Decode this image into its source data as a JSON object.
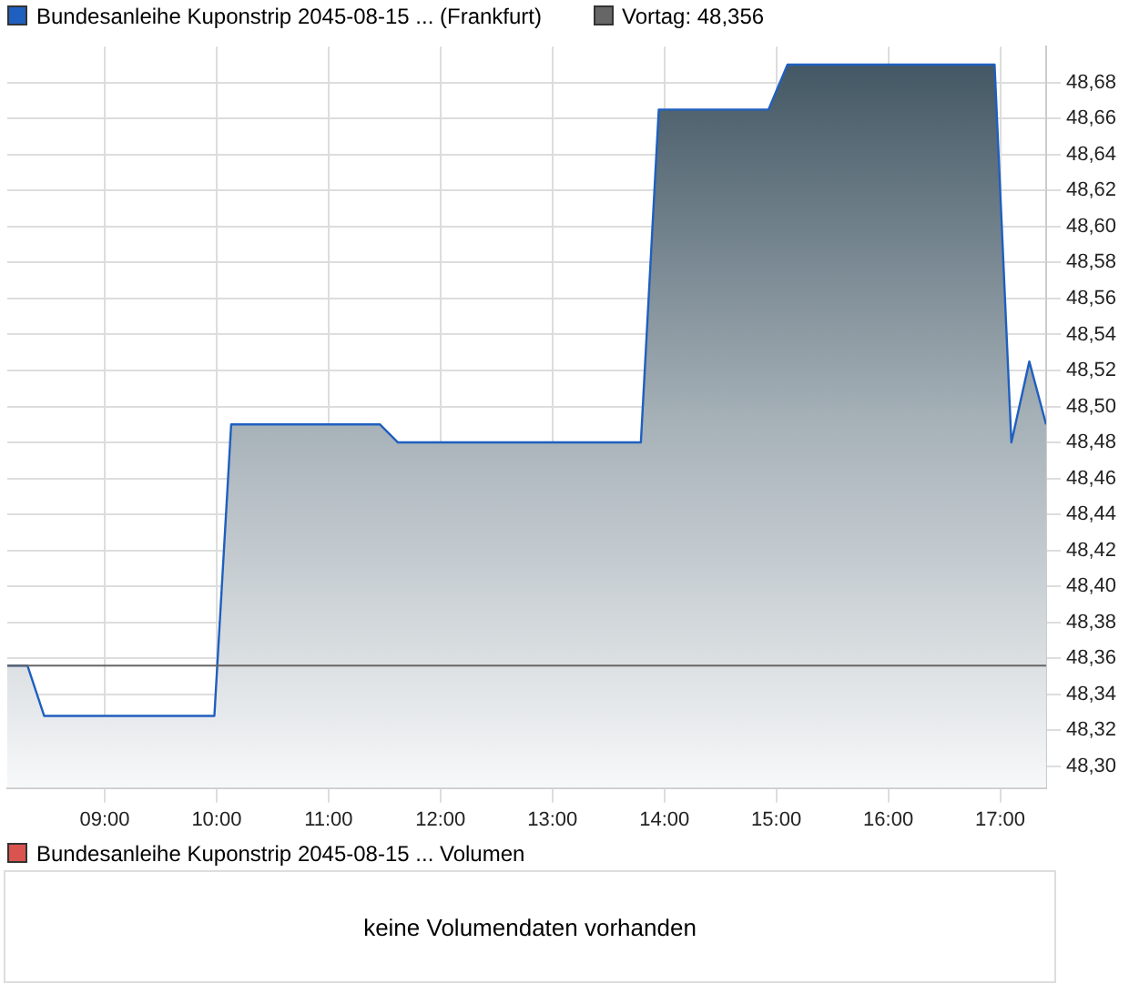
{
  "chart_data": [
    {
      "type": "area",
      "legend": "top",
      "grid": true,
      "marker": "none",
      "xlim": [
        8.13,
        17.41
      ],
      "xticks": [
        {
          "value": 9,
          "label": "09:00"
        },
        {
          "value": 10,
          "label": "10:00"
        },
        {
          "value": 11,
          "label": "11:00"
        },
        {
          "value": 12,
          "label": "12:00"
        },
        {
          "value": 13,
          "label": "13:00"
        },
        {
          "value": 14,
          "label": "14:00"
        },
        {
          "value": 15,
          "label": "15:00"
        },
        {
          "value": 16,
          "label": "16:00"
        },
        {
          "value": 17,
          "label": "17:00"
        }
      ],
      "ylim": [
        48.288,
        48.7
      ],
      "yticks": [
        {
          "value": 48.3,
          "label": "48,30"
        },
        {
          "value": 48.32,
          "label": "48,32"
        },
        {
          "value": 48.34,
          "label": "48,34"
        },
        {
          "value": 48.36,
          "label": "48,36"
        },
        {
          "value": 48.38,
          "label": "48,38"
        },
        {
          "value": 48.4,
          "label": "48,40"
        },
        {
          "value": 48.42,
          "label": "48,42"
        },
        {
          "value": 48.44,
          "label": "48,44"
        },
        {
          "value": 48.46,
          "label": "48,46"
        },
        {
          "value": 48.48,
          "label": "48,48"
        },
        {
          "value": 48.5,
          "label": "48,50"
        },
        {
          "value": 48.52,
          "label": "48,52"
        },
        {
          "value": 48.54,
          "label": "48,54"
        },
        {
          "value": 48.56,
          "label": "48,56"
        },
        {
          "value": 48.58,
          "label": "48,58"
        },
        {
          "value": 48.6,
          "label": "48,60"
        },
        {
          "value": 48.62,
          "label": "48,62"
        },
        {
          "value": 48.64,
          "label": "48,64"
        },
        {
          "value": 48.66,
          "label": "48,66"
        },
        {
          "value": 48.68,
          "label": "48,68"
        }
      ],
      "series": [
        {
          "name": "Bundesanleihe Kuponstrip 2045-08-15  ... (Frankfurt)",
          "color": "#1f5fbf",
          "x": [
            8.13,
            8.31,
            8.46,
            9.98,
            10.13,
            11.46,
            11.62,
            13.79,
            13.95,
            14.93,
            15.1,
            16.95,
            17.1,
            17.26,
            17.41
          ],
          "values": [
            48.356,
            48.356,
            48.328,
            48.328,
            48.49,
            48.49,
            48.48,
            48.48,
            48.665,
            48.665,
            48.69,
            48.69,
            48.48,
            48.525,
            48.49
          ]
        }
      ],
      "ref_lines": [
        {
          "axis": "y",
          "value": 48.356,
          "label": "Vortag: 48,356",
          "color": "#666666"
        }
      ]
    },
    {
      "type": "other",
      "legend": "top",
      "series": [
        {
          "name": "Bundesanleihe Kuponstrip 2045-08-15  ... Volumen",
          "color": "#d9534f"
        }
      ],
      "annotations": [
        "keine Volumendaten vorhanden"
      ]
    }
  ]
}
